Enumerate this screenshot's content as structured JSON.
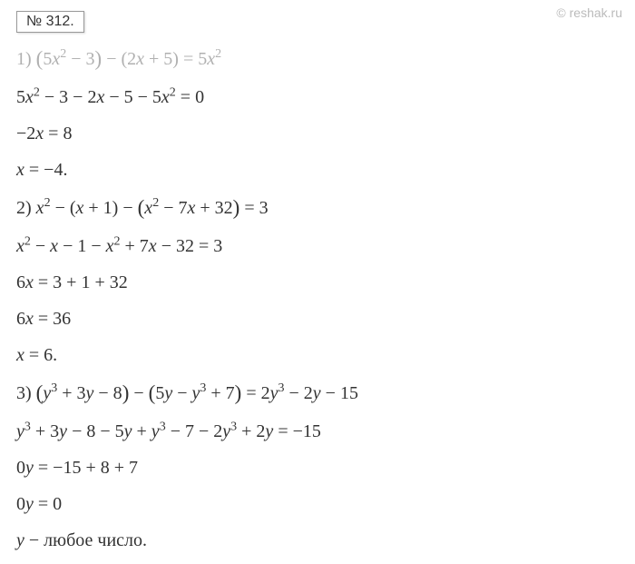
{
  "problem_number": "№ 312.",
  "watermark": "© reshak.ru",
  "colors": {
    "text": "#333333",
    "faded": "#b0b0b0",
    "watermark": "#bbbbbb",
    "background": "#ffffff",
    "border": "#999999"
  },
  "typography": {
    "body_fontsize": 20,
    "number_fontsize": 16,
    "watermark_fontsize": 14,
    "line_spacing": 14
  },
  "lines": [
    {
      "id": "l1",
      "html": "1) <span class=\"big-paren\">(</span>5<i>x</i><sup>2</sup> − 3<span class=\"big-paren\">)</span> − (2<i>x</i> + 5) = 5<i>x</i><sup>2</sup>",
      "faded": true
    },
    {
      "id": "l2",
      "html": "5<i>x</i><sup>2</sup> − 3 − 2<i>x</i> − 5 − 5<i>x</i><sup>2</sup> = 0"
    },
    {
      "id": "l3",
      "html": "−2<i>x</i> = 8"
    },
    {
      "id": "l4",
      "html": "<i>x</i> = −4."
    },
    {
      "id": "l5",
      "html": "2) <i>x</i><sup>2</sup> − (<i>x</i> + 1) − <span class=\"big-paren\">(</span><i>x</i><sup>2</sup> − 7<i>x</i> + 32<span class=\"big-paren\">)</span> = 3"
    },
    {
      "id": "l6",
      "html": "<i>x</i><sup>2</sup> − <i>x</i> − 1 − <i>x</i><sup>2</sup> + 7<i>x</i> − 32 = 3"
    },
    {
      "id": "l7",
      "html": "6<i>x</i> = 3 + 1 + 32"
    },
    {
      "id": "l8",
      "html": "6<i>x</i> = 36"
    },
    {
      "id": "l9",
      "html": "<i>x</i> = 6."
    },
    {
      "id": "l10",
      "html": "3) <span class=\"big-paren\">(</span><i>y</i><sup>3</sup> + 3<i>y</i> − 8<span class=\"big-paren\">)</span> − <span class=\"big-paren\">(</span>5<i>y</i> − <i>y</i><sup>3</sup> + 7<span class=\"big-paren\">)</span> = 2<i>y</i><sup>3</sup> − 2<i>y</i> − 15"
    },
    {
      "id": "l11",
      "html": "<i>y</i><sup>3</sup> + 3<i>y</i> − 8 − 5<i>y</i> + <i>y</i><sup>3</sup> − 7 − 2<i>y</i><sup>3</sup> + 2<i>y</i> = −15"
    },
    {
      "id": "l12",
      "html": "0<i>y</i> = −15 + 8 + 7"
    },
    {
      "id": "l13",
      "html": "0<i>y</i> = 0"
    },
    {
      "id": "l14",
      "html": "<i>y</i> − любое число."
    }
  ]
}
